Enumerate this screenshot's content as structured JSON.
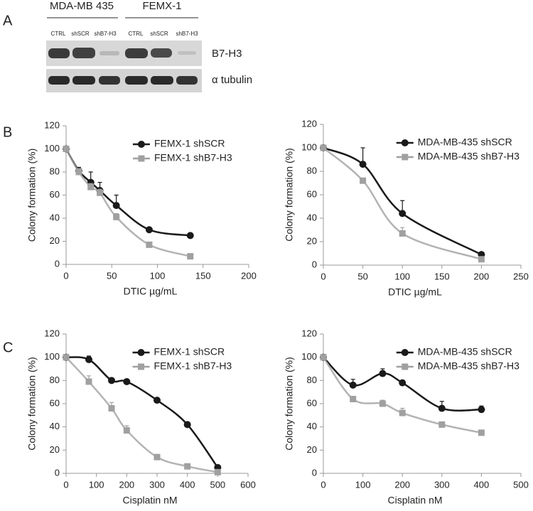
{
  "panel_labels": [
    "A",
    "B",
    "C"
  ],
  "blot": {
    "groups": [
      "MDA-MB 435",
      "FEMX-1"
    ],
    "lanes": [
      "CTRL",
      "shSCR",
      "shB7-H3",
      "CTRL",
      "shSCR",
      "shB7-H3"
    ],
    "proteins": [
      "B7-H3",
      "α tubulin"
    ]
  },
  "chart_data": [
    {
      "type": "line",
      "xlabel": "DTIC µg/mL",
      "ylabel": "Colony formation (%)",
      "x": [
        0,
        14,
        27,
        37,
        55,
        91,
        136
      ],
      "xlim": [
        0,
        200
      ],
      "xticks": [
        0,
        50,
        100,
        150,
        200
      ],
      "ylim": [
        0,
        120
      ],
      "yticks": [
        0,
        20,
        40,
        60,
        80,
        100,
        120
      ],
      "legend": "upper right",
      "series": [
        {
          "name": "FEMX-1 shSCR",
          "color": "#1a1a1a",
          "marker": "circle",
          "values": [
            100,
            81,
            71,
            64,
            51,
            30,
            25
          ],
          "errors": [
            0,
            3,
            9,
            7,
            9,
            1,
            1
          ]
        },
        {
          "name": "FEMX-1 shB7-H3",
          "color": "#a0a0a0",
          "marker": "square",
          "values": [
            100,
            80,
            67,
            62,
            41,
            17,
            7
          ],
          "errors": [
            0,
            3,
            3,
            3,
            3,
            0,
            0
          ]
        }
      ]
    },
    {
      "type": "line",
      "xlabel": "DTIC µg/mL",
      "ylabel": "Colony formation (%)",
      "x": [
        0,
        50,
        100,
        200
      ],
      "xlim": [
        0,
        250
      ],
      "xticks": [
        0,
        50,
        100,
        150,
        200,
        250
      ],
      "ylim": [
        0,
        120
      ],
      "yticks": [
        0,
        20,
        40,
        60,
        80,
        100,
        120
      ],
      "legend": "upper right",
      "series": [
        {
          "name": "MDA-MB-435 shSCR",
          "color": "#1a1a1a",
          "marker": "circle",
          "values": [
            100,
            86,
            44,
            9
          ],
          "errors": [
            0,
            14,
            11,
            0
          ]
        },
        {
          "name": "MDA-MB-435 shB7-H3",
          "color": "#a0a0a0",
          "marker": "square",
          "values": [
            100,
            72,
            27,
            5
          ],
          "errors": [
            0,
            0,
            5,
            0
          ]
        }
      ]
    },
    {
      "type": "line",
      "xlabel": "Cisplatin nM",
      "ylabel": "Colony formation (%)",
      "x": [
        0,
        75,
        150,
        200,
        300,
        400,
        500
      ],
      "xlim": [
        0,
        600
      ],
      "xticks": [
        0,
        100,
        200,
        300,
        400,
        500,
        600
      ],
      "ylim": [
        0,
        120
      ],
      "yticks": [
        0,
        20,
        40,
        60,
        80,
        100,
        120
      ],
      "legend": "upper right",
      "series": [
        {
          "name": "FEMX-1 shSCR",
          "color": "#1a1a1a",
          "marker": "circle",
          "values": [
            100,
            98,
            80,
            79,
            63,
            42,
            5
          ],
          "errors": [
            0,
            3,
            0,
            2,
            0,
            2,
            0
          ]
        },
        {
          "name": "FEMX-1 shB7-H3",
          "color": "#a0a0a0",
          "marker": "square",
          "values": [
            100,
            79,
            56,
            37,
            14,
            6,
            1
          ],
          "errors": [
            0,
            5,
            5,
            4,
            0,
            0,
            0
          ]
        }
      ]
    },
    {
      "type": "line",
      "xlabel": "Cisplatin nM",
      "ylabel": "Colony formation (%)",
      "x": [
        0,
        75,
        150,
        200,
        300,
        400
      ],
      "xlim": [
        0,
        500
      ],
      "xticks": [
        0,
        100,
        200,
        300,
        400,
        500
      ],
      "ylim": [
        0,
        120
      ],
      "yticks": [
        0,
        20,
        40,
        60,
        80,
        100,
        120
      ],
      "legend": "upper right",
      "series": [
        {
          "name": "MDA-MB-435 shSCR",
          "color": "#1a1a1a",
          "marker": "circle",
          "values": [
            100,
            76,
            86,
            78,
            56,
            55
          ],
          "errors": [
            0,
            5,
            4,
            0,
            6,
            3
          ]
        },
        {
          "name": "MDA-MB-435 shB7-H3",
          "color": "#a0a0a0",
          "marker": "square",
          "values": [
            100,
            64,
            60,
            52,
            42,
            35
          ],
          "errors": [
            0,
            0,
            3,
            4,
            0,
            0
          ]
        }
      ]
    }
  ]
}
